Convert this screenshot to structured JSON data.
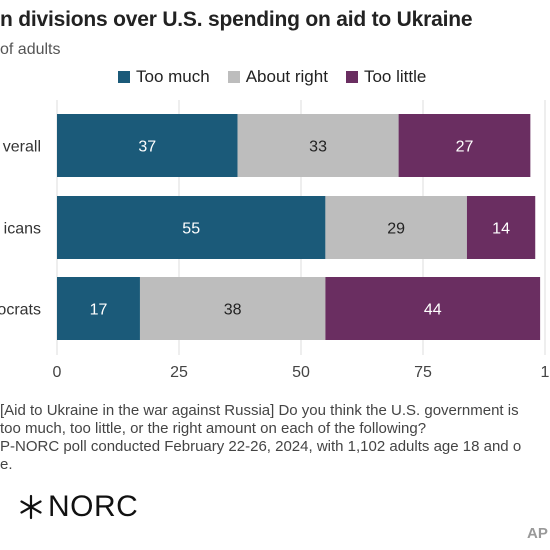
{
  "header": {
    "title": "n divisions over U.S. spending on aid to Ukraine",
    "subtitle": "of adults"
  },
  "legend": {
    "items": [
      {
        "label": "Too much",
        "color": "#1b5a79"
      },
      {
        "label": "About right",
        "color": "#bdbdbd"
      },
      {
        "label": "Too little",
        "color": "#6a2e61"
      }
    ]
  },
  "chart_data": {
    "type": "bar",
    "orientation": "horizontal",
    "stacked": true,
    "categories": [
      "verall",
      "icans",
      "ocrats"
    ],
    "series": [
      {
        "name": "Too much",
        "values": [
          37,
          55,
          17
        ],
        "color": "#1b5a79",
        "label_color": "#ffffff"
      },
      {
        "name": "About right",
        "values": [
          33,
          29,
          38
        ],
        "color": "#bdbdbd",
        "label_color": "#222222"
      },
      {
        "name": "Too little",
        "values": [
          27,
          14,
          44
        ],
        "color": "#6a2e61",
        "label_color": "#ffffff"
      }
    ],
    "xlim": [
      0,
      100
    ],
    "xticks": [
      "0",
      "25",
      "50",
      "75",
      "1"
    ],
    "grid": true,
    "legend_position": "top"
  },
  "notes": {
    "lines": [
      "   [Aid to Ukraine in the war against Russia] Do you think the U.S. government is",
      "too much, too little, or the right amount on each of the following?",
      "P-NORC poll conducted February 22-26, 2024, with 1,102 adults age 18 and o",
      "e."
    ]
  },
  "branding": {
    "logo_text": "NORC",
    "logo_icon": "star-burst-icon",
    "credit": "AP"
  }
}
